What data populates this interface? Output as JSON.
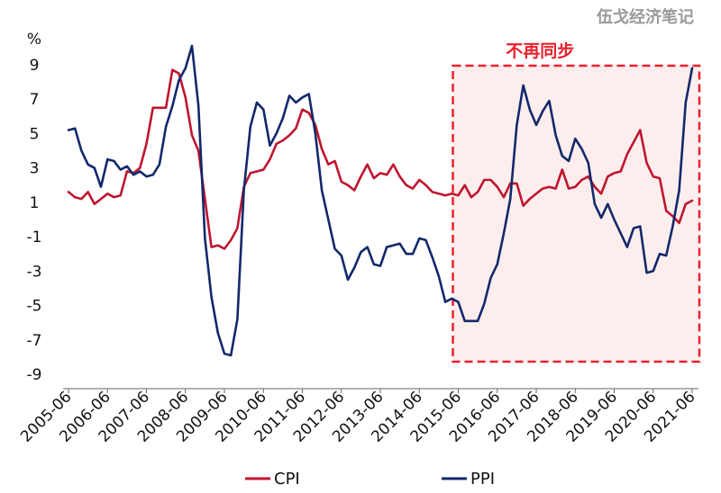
{
  "watermark": "伍戈经济笔记",
  "chart_data": {
    "type": "line",
    "title": "",
    "unit": "%",
    "ylim": [
      -9,
      10
    ],
    "yticks": [
      9,
      7,
      5,
      3,
      1,
      -1,
      -3,
      -5,
      -7,
      -9
    ],
    "xticks": [
      "2005-06",
      "2006-06",
      "2007-06",
      "2008-06",
      "2009-06",
      "2010-06",
      "2011-06",
      "2012-06",
      "2013-06",
      "2014-06",
      "2015-06",
      "2016-06",
      "2017-06",
      "2018-06",
      "2019-06",
      "2020-06",
      "2021-06"
    ],
    "grid": false,
    "legend": "bottom-center",
    "annotation": {
      "text": "不再同步",
      "x_range": [
        "2015-06",
        "2021-06"
      ],
      "fill": "#fdeeee",
      "stroke": "#e8222c"
    },
    "series": [
      {
        "name": "CPI",
        "color": "#c0152f",
        "points": [
          [
            "2005-06",
            1.6
          ],
          [
            "2005-08",
            1.3
          ],
          [
            "2005-10",
            1.2
          ],
          [
            "2005-12",
            1.6
          ],
          [
            "2006-02",
            0.9
          ],
          [
            "2006-04",
            1.2
          ],
          [
            "2006-06",
            1.5
          ],
          [
            "2006-08",
            1.3
          ],
          [
            "2006-10",
            1.4
          ],
          [
            "2006-12",
            2.8
          ],
          [
            "2007-02",
            2.7
          ],
          [
            "2007-04",
            3.0
          ],
          [
            "2007-06",
            4.4
          ],
          [
            "2007-08",
            6.5
          ],
          [
            "2007-10",
            6.5
          ],
          [
            "2007-12",
            6.5
          ],
          [
            "2008-02",
            8.7
          ],
          [
            "2008-04",
            8.5
          ],
          [
            "2008-06",
            7.1
          ],
          [
            "2008-08",
            4.9
          ],
          [
            "2008-10",
            4.0
          ],
          [
            "2008-12",
            1.2
          ],
          [
            "2009-02",
            -1.6
          ],
          [
            "2009-04",
            -1.5
          ],
          [
            "2009-06",
            -1.7
          ],
          [
            "2009-08",
            -1.2
          ],
          [
            "2009-10",
            -0.5
          ],
          [
            "2009-12",
            1.9
          ],
          [
            "2010-02",
            2.7
          ],
          [
            "2010-04",
            2.8
          ],
          [
            "2010-06",
            2.9
          ],
          [
            "2010-08",
            3.5
          ],
          [
            "2010-10",
            4.4
          ],
          [
            "2010-12",
            4.6
          ],
          [
            "2011-02",
            4.9
          ],
          [
            "2011-04",
            5.3
          ],
          [
            "2011-06",
            6.4
          ],
          [
            "2011-08",
            6.2
          ],
          [
            "2011-10",
            5.5
          ],
          [
            "2011-12",
            4.1
          ],
          [
            "2012-02",
            3.2
          ],
          [
            "2012-04",
            3.4
          ],
          [
            "2012-06",
            2.2
          ],
          [
            "2012-08",
            2.0
          ],
          [
            "2012-10",
            1.7
          ],
          [
            "2012-12",
            2.5
          ],
          [
            "2013-02",
            3.2
          ],
          [
            "2013-04",
            2.4
          ],
          [
            "2013-06",
            2.7
          ],
          [
            "2013-08",
            2.6
          ],
          [
            "2013-10",
            3.2
          ],
          [
            "2013-12",
            2.5
          ],
          [
            "2014-02",
            2.0
          ],
          [
            "2014-04",
            1.8
          ],
          [
            "2014-06",
            2.3
          ],
          [
            "2014-08",
            2.0
          ],
          [
            "2014-10",
            1.6
          ],
          [
            "2014-12",
            1.5
          ],
          [
            "2015-02",
            1.4
          ],
          [
            "2015-04",
            1.5
          ],
          [
            "2015-06",
            1.4
          ],
          [
            "2015-08",
            2.0
          ],
          [
            "2015-10",
            1.3
          ],
          [
            "2015-12",
            1.6
          ],
          [
            "2016-02",
            2.3
          ],
          [
            "2016-04",
            2.3
          ],
          [
            "2016-06",
            1.9
          ],
          [
            "2016-08",
            1.3
          ],
          [
            "2016-10",
            2.1
          ],
          [
            "2016-12",
            2.1
          ],
          [
            "2017-02",
            0.8
          ],
          [
            "2017-04",
            1.2
          ],
          [
            "2017-06",
            1.5
          ],
          [
            "2017-08",
            1.8
          ],
          [
            "2017-10",
            1.9
          ],
          [
            "2017-12",
            1.8
          ],
          [
            "2018-02",
            2.9
          ],
          [
            "2018-04",
            1.8
          ],
          [
            "2018-06",
            1.9
          ],
          [
            "2018-08",
            2.3
          ],
          [
            "2018-10",
            2.5
          ],
          [
            "2018-12",
            1.9
          ],
          [
            "2019-02",
            1.5
          ],
          [
            "2019-04",
            2.5
          ],
          [
            "2019-06",
            2.7
          ],
          [
            "2019-08",
            2.8
          ],
          [
            "2019-10",
            3.8
          ],
          [
            "2019-12",
            4.5
          ],
          [
            "2020-02",
            5.2
          ],
          [
            "2020-04",
            3.3
          ],
          [
            "2020-06",
            2.5
          ],
          [
            "2020-08",
            2.4
          ],
          [
            "2020-10",
            0.5
          ],
          [
            "2020-12",
            0.2
          ],
          [
            "2021-02",
            -0.2
          ],
          [
            "2021-04",
            0.9
          ],
          [
            "2021-06",
            1.1
          ]
        ]
      },
      {
        "name": "PPI",
        "color": "#13286b",
        "points": [
          [
            "2005-06",
            5.2
          ],
          [
            "2005-08",
            5.3
          ],
          [
            "2005-10",
            4.0
          ],
          [
            "2005-12",
            3.2
          ],
          [
            "2006-02",
            3.0
          ],
          [
            "2006-04",
            1.9
          ],
          [
            "2006-06",
            3.5
          ],
          [
            "2006-08",
            3.4
          ],
          [
            "2006-10",
            2.9
          ],
          [
            "2006-12",
            3.1
          ],
          [
            "2007-02",
            2.6
          ],
          [
            "2007-04",
            2.8
          ],
          [
            "2007-06",
            2.5
          ],
          [
            "2007-08",
            2.6
          ],
          [
            "2007-10",
            3.2
          ],
          [
            "2007-12",
            5.4
          ],
          [
            "2008-02",
            6.6
          ],
          [
            "2008-04",
            8.1
          ],
          [
            "2008-06",
            8.8
          ],
          [
            "2008-08",
            10.1
          ],
          [
            "2008-10",
            6.6
          ],
          [
            "2008-12",
            -1.1
          ],
          [
            "2009-02",
            -4.5
          ],
          [
            "2009-04",
            -6.6
          ],
          [
            "2009-06",
            -7.8
          ],
          [
            "2009-08",
            -7.9
          ],
          [
            "2009-10",
            -5.8
          ],
          [
            "2009-12",
            1.7
          ],
          [
            "2010-02",
            5.4
          ],
          [
            "2010-04",
            6.8
          ],
          [
            "2010-06",
            6.4
          ],
          [
            "2010-08",
            4.3
          ],
          [
            "2010-10",
            5.0
          ],
          [
            "2010-12",
            5.9
          ],
          [
            "2011-02",
            7.2
          ],
          [
            "2011-04",
            6.8
          ],
          [
            "2011-06",
            7.1
          ],
          [
            "2011-08",
            7.3
          ],
          [
            "2011-10",
            5.0
          ],
          [
            "2011-12",
            1.7
          ],
          [
            "2012-02",
            0.0
          ],
          [
            "2012-04",
            -1.7
          ],
          [
            "2012-06",
            -2.1
          ],
          [
            "2012-08",
            -3.5
          ],
          [
            "2012-10",
            -2.8
          ],
          [
            "2012-12",
            -1.9
          ],
          [
            "2013-02",
            -1.6
          ],
          [
            "2013-04",
            -2.6
          ],
          [
            "2013-06",
            -2.7
          ],
          [
            "2013-08",
            -1.6
          ],
          [
            "2013-10",
            -1.5
          ],
          [
            "2013-12",
            -1.4
          ],
          [
            "2014-02",
            -2.0
          ],
          [
            "2014-04",
            -2.0
          ],
          [
            "2014-06",
            -1.1
          ],
          [
            "2014-08",
            -1.2
          ],
          [
            "2014-10",
            -2.2
          ],
          [
            "2014-12",
            -3.3
          ],
          [
            "2015-02",
            -4.8
          ],
          [
            "2015-04",
            -4.6
          ],
          [
            "2015-06",
            -4.8
          ],
          [
            "2015-08",
            -5.9
          ],
          [
            "2015-10",
            -5.9
          ],
          [
            "2015-12",
            -5.9
          ],
          [
            "2016-02",
            -4.9
          ],
          [
            "2016-04",
            -3.4
          ],
          [
            "2016-06",
            -2.6
          ],
          [
            "2016-08",
            -0.8
          ],
          [
            "2016-10",
            1.2
          ],
          [
            "2016-12",
            5.5
          ],
          [
            "2017-02",
            7.8
          ],
          [
            "2017-04",
            6.4
          ],
          [
            "2017-06",
            5.5
          ],
          [
            "2017-08",
            6.3
          ],
          [
            "2017-10",
            6.9
          ],
          [
            "2017-12",
            4.9
          ],
          [
            "2018-02",
            3.7
          ],
          [
            "2018-04",
            3.4
          ],
          [
            "2018-06",
            4.7
          ],
          [
            "2018-08",
            4.1
          ],
          [
            "2018-10",
            3.3
          ],
          [
            "2018-12",
            0.9
          ],
          [
            "2019-02",
            0.1
          ],
          [
            "2019-04",
            0.9
          ],
          [
            "2019-06",
            0.0
          ],
          [
            "2019-08",
            -0.8
          ],
          [
            "2019-10",
            -1.6
          ],
          [
            "2019-12",
            -0.5
          ],
          [
            "2020-02",
            -0.4
          ],
          [
            "2020-04",
            -3.1
          ],
          [
            "2020-06",
            -3.0
          ],
          [
            "2020-08",
            -2.0
          ],
          [
            "2020-10",
            -2.1
          ],
          [
            "2020-12",
            -0.4
          ],
          [
            "2021-02",
            1.7
          ],
          [
            "2021-04",
            6.8
          ],
          [
            "2021-06",
            8.8
          ]
        ]
      }
    ]
  }
}
